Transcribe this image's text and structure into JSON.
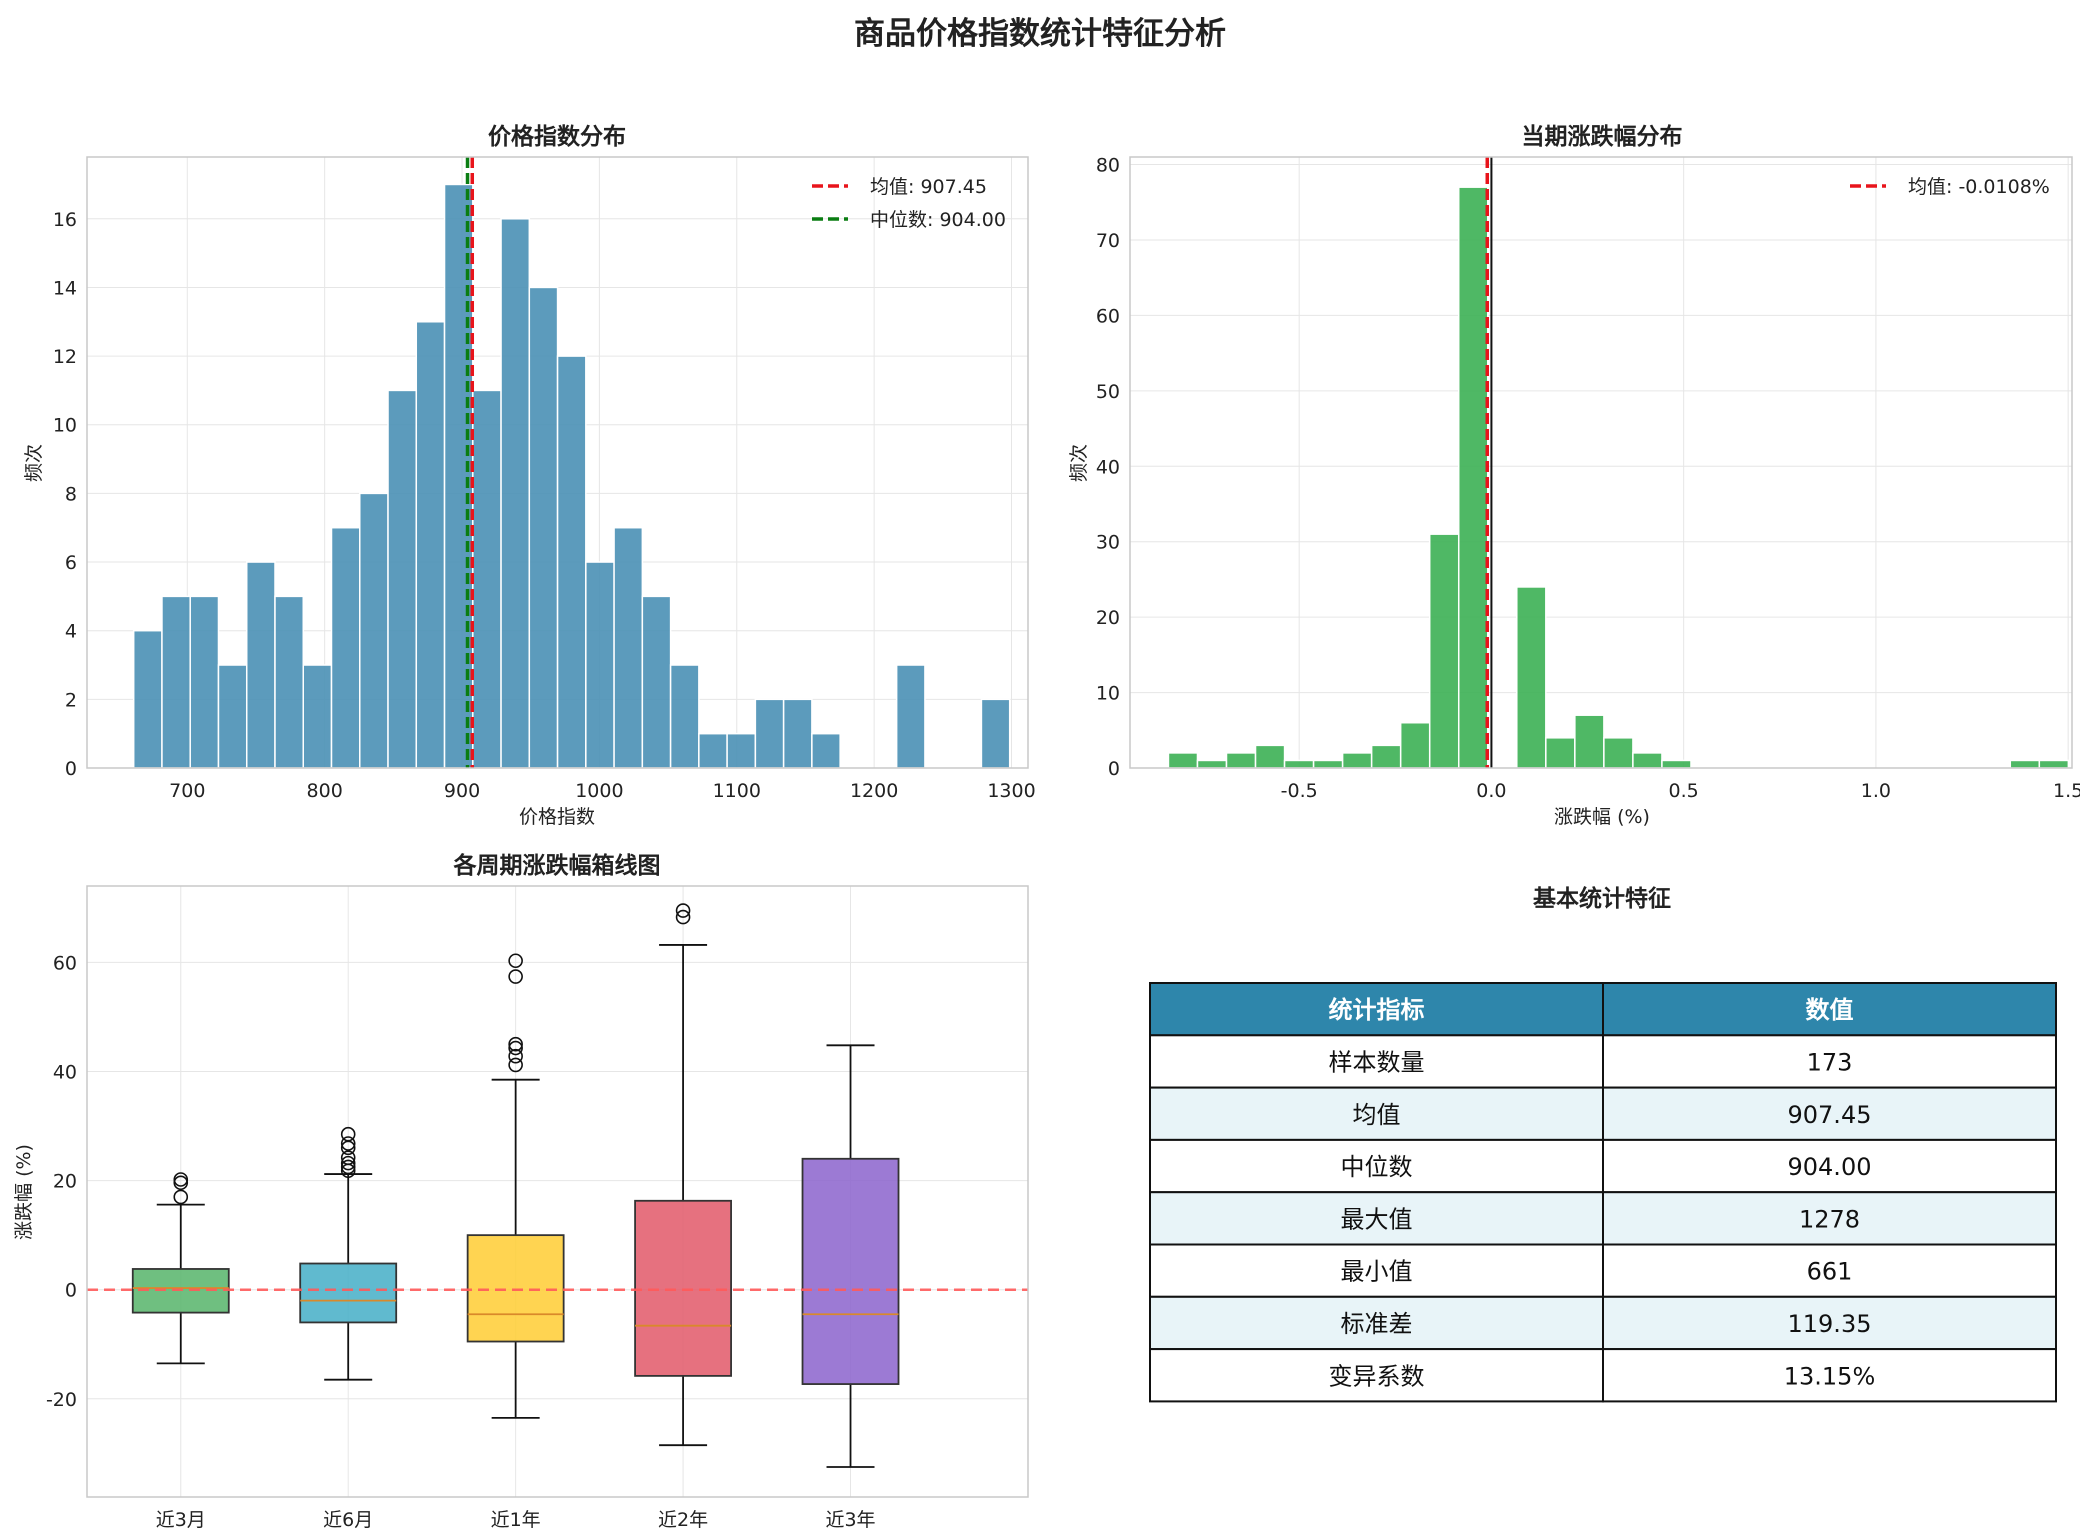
{
  "title": "商品价格指数统计特征分析",
  "colors": {
    "hist1": "#4a90b5",
    "hist2": "#3cb054",
    "mean_line": "#e8141b",
    "median_line": "#0a7d12",
    "grid": "#e6e6e6",
    "table_header": "#2e86ab",
    "table_alt_row": "#e8f4f8"
  },
  "chart_data": [
    {
      "type": "bar",
      "title": "价格指数分布",
      "xlabel": "价格指数",
      "ylabel": "频次",
      "xlim": [
        627,
        1312
      ],
      "ylim": [
        0,
        17.8
      ],
      "xticks": [
        "700",
        "800",
        "900",
        "1000",
        "1100",
        "1200",
        "1300"
      ],
      "yticks": [
        "0",
        "2",
        "4",
        "6",
        "8",
        "10",
        "12",
        "14",
        "16"
      ],
      "bin_start": 661,
      "bin_width": 20.57,
      "values": [
        4,
        5,
        5,
        3,
        6,
        5,
        3,
        7,
        8,
        11,
        13,
        17,
        11,
        16,
        14,
        12,
        6,
        7,
        5,
        3,
        1,
        1,
        2,
        2,
        1,
        0,
        0,
        3,
        0,
        0,
        2
      ],
      "lines": [
        {
          "name": "均值: 907.45",
          "x": 907.45,
          "color": "#e8141b"
        },
        {
          "name": "中位数: 904.00",
          "x": 904.0,
          "color": "#0a7d12"
        }
      ],
      "legend": "top-right",
      "grid": true
    },
    {
      "type": "bar",
      "title": "当期涨跌幅分布",
      "xlabel": "涨跌幅 (%)",
      "ylabel": "频次",
      "xlim": [
        -0.94,
        1.51
      ],
      "ylim": [
        0,
        81
      ],
      "xticks": [
        "-0.5",
        "0.0",
        "0.5",
        "1.0",
        "1.5"
      ],
      "yticks": [
        "0",
        "10",
        "20",
        "30",
        "40",
        "50",
        "60",
        "70",
        "80"
      ],
      "bin_start": -0.84,
      "bin_width": 0.0755,
      "values": [
        2,
        1,
        2,
        3,
        1,
        1,
        2,
        3,
        6,
        31,
        77,
        0,
        24,
        4,
        7,
        4,
        2,
        1,
        0,
        0,
        0,
        0,
        0,
        0,
        0,
        0,
        0,
        0,
        0,
        1,
        1
      ],
      "lines": [
        {
          "name": "均值: -0.0108%",
          "x": -0.0108,
          "color": "#e8141b"
        }
      ],
      "zero_line": 0,
      "legend": "top-right",
      "grid": true
    },
    {
      "type": "box",
      "title": "各周期涨跌幅箱线图",
      "ylabel": "涨跌幅 (%)",
      "ylim": [
        -38,
        74
      ],
      "yticks": [
        "-20",
        "0",
        "20",
        "40",
        "60"
      ],
      "categories": [
        "近3月",
        "近6月",
        "近1年",
        "近2年",
        "近3年"
      ],
      "boxes": [
        {
          "whislo": -13.5,
          "q1": -4.2,
          "med": 0.3,
          "q3": 3.8,
          "whishi": 15.6,
          "fliers": [
            17,
            19.6,
            20.2
          ],
          "color": "#56b46a"
        },
        {
          "whislo": -16.5,
          "q1": -6.0,
          "med": -2.0,
          "q3": 4.8,
          "whishi": 21.2,
          "fliers": [
            21.8,
            22.5,
            23.2,
            24.2,
            26.0,
            26.8,
            28.5
          ],
          "color": "#44aec7"
        },
        {
          "whislo": -23.5,
          "q1": -9.5,
          "med": -4.5,
          "q3": 10.0,
          "whishi": 38.5,
          "fliers": [
            41.2,
            42.8,
            44.3,
            45.0,
            57.4,
            60.3
          ],
          "color": "#ffcc33"
        },
        {
          "whislo": -28.5,
          "q1": -15.8,
          "med": -6.6,
          "q3": 16.3,
          "whishi": 63.2,
          "fliers": [
            68.3,
            69.5
          ],
          "color": "#e25868"
        },
        {
          "whislo": -32.5,
          "q1": -17.3,
          "med": -4.5,
          "q3": 24.0,
          "whishi": 44.8,
          "fliers": [],
          "color": "#8b63cc"
        }
      ],
      "reference_line": 0,
      "grid": true
    }
  ],
  "table": {
    "title": "基本统计特征",
    "headers": [
      "统计指标",
      "数值"
    ],
    "rows": [
      [
        "样本数量",
        "173"
      ],
      [
        "均值",
        "907.45"
      ],
      [
        "中位数",
        "904.00"
      ],
      [
        "最大值",
        "1278"
      ],
      [
        "最小值",
        "661"
      ],
      [
        "标准差",
        "119.35"
      ],
      [
        "变异系数",
        "13.15%"
      ]
    ]
  }
}
